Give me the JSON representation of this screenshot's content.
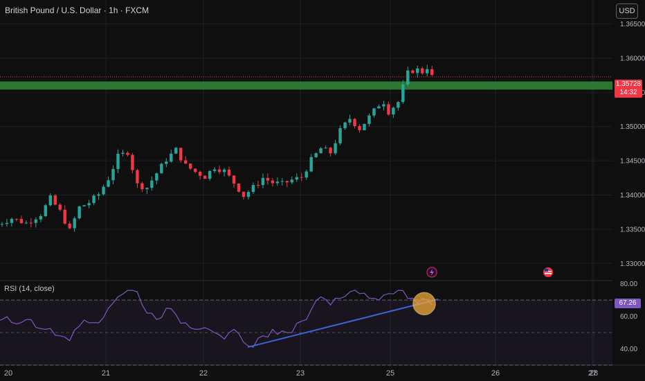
{
  "header": {
    "title": "British Pound / U.S. Dollar · 1h · FXCM",
    "currency": "USD"
  },
  "price_tag": {
    "price": "1.35728",
    "countdown": "14:32"
  },
  "rsi_panel": {
    "label": "RSI (14, close)",
    "value": "67.26"
  },
  "colors": {
    "up": "#26a69a",
    "down": "#f23645",
    "zone": "#2e7d32",
    "rsi": "#7e57c2",
    "trendline": "#3d63d6",
    "highlight": "#f0a93a"
  },
  "icons": [
    "lightning-event-icon",
    "us-flag-event-icon"
  ],
  "chart_data": [
    {
      "type": "candlestick",
      "title": "British Pound / U.S. Dollar · 1h · FXCM",
      "x_ticks": [
        "20",
        "21",
        "22",
        "23",
        "25",
        "26",
        "27",
        "28"
      ],
      "y_ticks": [
        "1.36500",
        "1.36000",
        "1.35500",
        "1.35000",
        "1.34500",
        "1.34000",
        "1.33500",
        "1.33000"
      ],
      "ylim": [
        1.3275,
        1.3685
      ],
      "current_price": 1.35728,
      "zone": {
        "from": 1.3554,
        "to": 1.3566
      },
      "path_points": [
        [
          0,
          1.3357
        ],
        [
          3,
          1.3366
        ],
        [
          6,
          1.3359
        ],
        [
          9,
          1.3372
        ],
        [
          11,
          1.3395
        ],
        [
          13,
          1.3376
        ],
        [
          15,
          1.3348
        ],
        [
          17,
          1.3382
        ],
        [
          19,
          1.3389
        ],
        [
          21,
          1.3401
        ],
        [
          23,
          1.3424
        ],
        [
          25,
          1.3456
        ],
        [
          27,
          1.3463
        ],
        [
          29,
          1.3415
        ],
        [
          31,
          1.3411
        ],
        [
          33,
          1.3432
        ],
        [
          35,
          1.3452
        ],
        [
          37,
          1.3466
        ],
        [
          39,
          1.3443
        ],
        [
          41,
          1.3434
        ],
        [
          43,
          1.3427
        ],
        [
          45,
          1.3441
        ],
        [
          47,
          1.3435
        ],
        [
          49,
          1.3418
        ],
        [
          51,
          1.3399
        ],
        [
          53,
          1.3411
        ],
        [
          55,
          1.3425
        ],
        [
          57,
          1.3418
        ],
        [
          59,
          1.3416
        ],
        [
          61,
          1.3422
        ],
        [
          63,
          1.3426
        ],
        [
          65,
          1.3451
        ],
        [
          67,
          1.3468
        ],
        [
          69,
          1.3462
        ],
        [
          71,
          1.3494
        ],
        [
          73,
          1.3512
        ],
        [
          75,
          1.3497
        ],
        [
          77,
          1.3514
        ],
        [
          79,
          1.3532
        ],
        [
          80,
          1.3536
        ],
        [
          81,
          1.3522
        ],
        [
          83,
          1.3536
        ],
        [
          84,
          1.3558
        ],
        [
          85,
          1.3578
        ],
        [
          86,
          1.3582
        ],
        [
          87,
          1.3583
        ],
        [
          88,
          1.358
        ],
        [
          89,
          1.3587
        ],
        [
          90,
          1.3573
        ]
      ]
    },
    {
      "type": "line",
      "title": "RSI (14, close)",
      "y_ticks": [
        "80.00",
        "60.00",
        "40.00"
      ],
      "ylim": [
        30,
        82
      ],
      "bands": [
        70,
        50,
        30
      ],
      "series": [
        {
          "name": "RSI (14, close)",
          "points": [
            [
              0,
              57
            ],
            [
              6,
              58
            ],
            [
              10,
              52
            ],
            [
              13,
              48
            ],
            [
              15,
              45
            ],
            [
              17,
              54
            ],
            [
              19,
              56
            ],
            [
              21,
              56
            ],
            [
              23,
              65
            ],
            [
              25,
              72
            ],
            [
              27,
              76
            ],
            [
              29,
              75
            ],
            [
              31,
              62
            ],
            [
              33,
              58
            ],
            [
              35,
              65
            ],
            [
              37,
              61
            ],
            [
              39,
              56
            ],
            [
              41,
              52
            ],
            [
              43,
              53
            ],
            [
              45,
              50
            ],
            [
              47,
              46
            ],
            [
              49,
              52
            ],
            [
              51,
              44
            ],
            [
              53,
              41
            ],
            [
              55,
              48
            ],
            [
              57,
              52
            ],
            [
              59,
              51
            ],
            [
              61,
              50
            ],
            [
              63,
              57
            ],
            [
              65,
              64
            ],
            [
              67,
              72
            ],
            [
              69,
              67
            ],
            [
              71,
              71
            ],
            [
              73,
              75
            ],
            [
              75,
              74
            ],
            [
              77,
              71
            ],
            [
              79,
              70
            ],
            [
              81,
              74
            ],
            [
              83,
              76
            ],
            [
              85,
              71
            ],
            [
              87,
              68
            ],
            [
              89,
              70
            ],
            [
              90,
              67.26
            ]
          ]
        }
      ]
    }
  ]
}
